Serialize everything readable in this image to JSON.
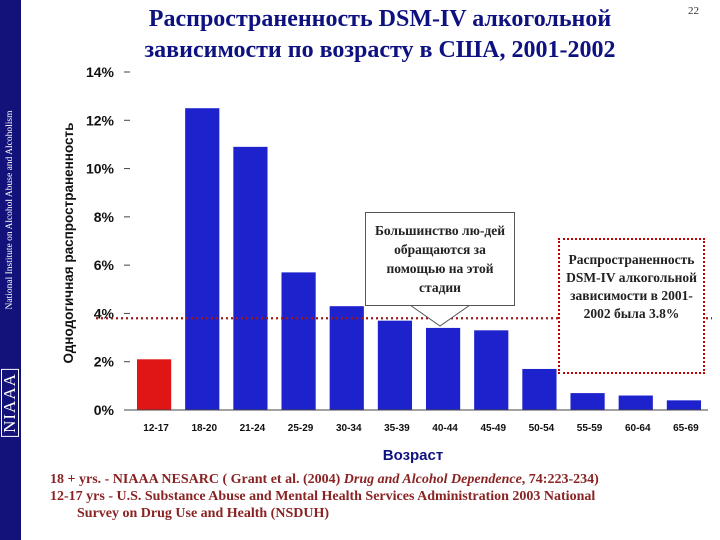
{
  "slide": {
    "title": "Распространенность  DSM-IV алкогольной зависимости по возрасту в США, 2001-2002",
    "number": "22",
    "sidebar_text": "National Institute on Alcohol Abuse and Alcoholism",
    "sidebar_logo": "NIAAA"
  },
  "callouts": {
    "treatment": "Большинство лю-дей обращаются за помощью на этой стадии",
    "prevalence": "Распространенность  DSM-IV алкогольной зависимости в 2001-2002 была 3.8%"
  },
  "footnotes": {
    "line1_prefix": "18 + yrs. - NIAAA NESARC ( Grant et al. (2004) ",
    "line1_journal": "Drug and Alcohol Dependence",
    "line1_suffix": ", 74:223-234)",
    "line2": "12-17 yrs - U.S. Substance  Abuse and Mental Health Services Administration 2003 National",
    "line3": "Survey on Drug Use and Health (NSDUH)"
  },
  "chart_data": {
    "type": "bar",
    "categories": [
      "12-17",
      "18-20",
      "21-24",
      "25-29",
      "30-34",
      "35-39",
      "40-44",
      "45-49",
      "50-54",
      "55-59",
      "60-64",
      "65-69"
    ],
    "values": [
      2.1,
      12.5,
      10.9,
      5.7,
      4.3,
      3.7,
      3.4,
      3.3,
      1.7,
      0.7,
      0.6,
      0.4
    ],
    "bar_colors": [
      "#e01616",
      "#1e22cc",
      "#1e22cc",
      "#1e22cc",
      "#1e22cc",
      "#1e22cc",
      "#1e22cc",
      "#1e22cc",
      "#1e22cc",
      "#1e22cc",
      "#1e22cc",
      "#1e22cc"
    ],
    "xlabel": "Возраст",
    "ylabel": "Однодогичная распространенность",
    "ylim": [
      0,
      14
    ],
    "yticks": [
      0,
      2,
      4,
      6,
      8,
      10,
      12,
      14
    ],
    "ytick_labels": [
      "0%",
      "2%",
      "4%",
      "6%",
      "8%",
      "10%",
      "12%",
      "14%"
    ],
    "reference_line": {
      "value": 3.8,
      "color": "#a01818",
      "style": "dotted"
    },
    "grid": false,
    "legend": "none"
  }
}
